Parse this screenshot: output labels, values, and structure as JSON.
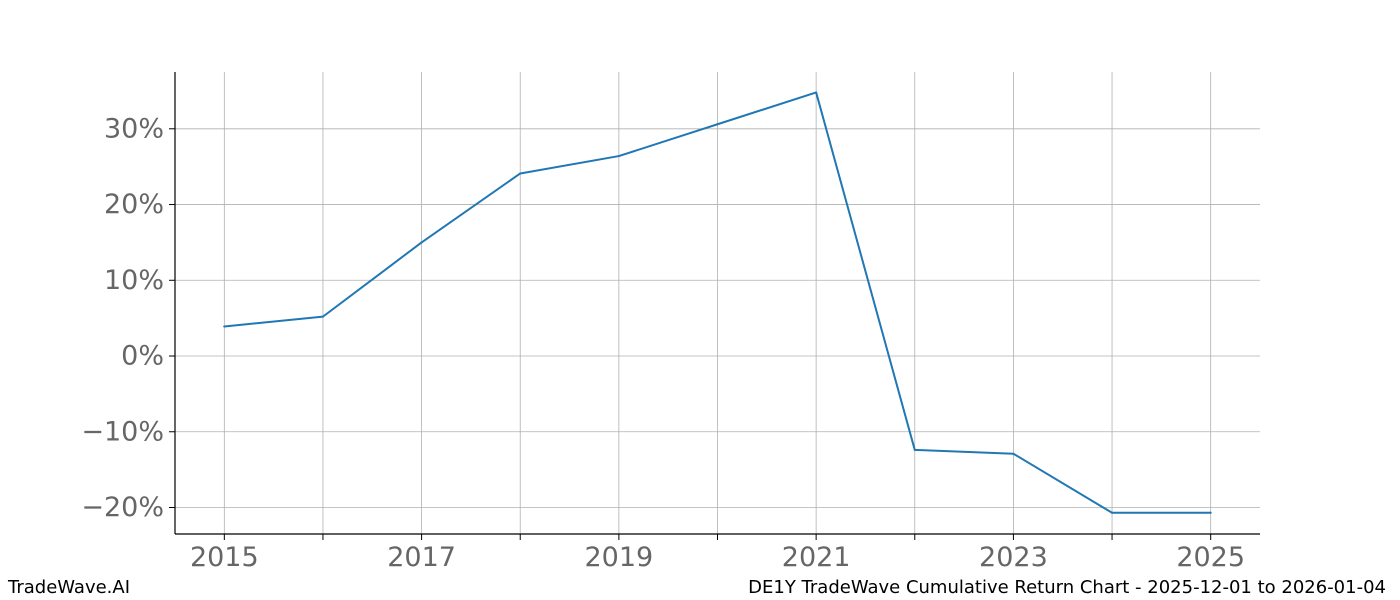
{
  "chart_data": {
    "type": "line",
    "title": "",
    "xlabel": "",
    "ylabel": "",
    "x": [
      2015,
      2016,
      2017,
      2018,
      2019,
      2020,
      2021,
      2022,
      2023,
      2024,
      2025
    ],
    "series": [
      {
        "values": [
          3.9,
          5.2,
          15.0,
          24.1,
          26.4,
          30.6,
          34.8,
          -12.4,
          -12.9,
          -20.7,
          -20.7
        ]
      }
    ],
    "xlim": [
      2014.5,
      2025.5
    ],
    "ylim": [
      -23.5,
      37.5
    ],
    "xticks": [
      2015,
      2016,
      2017,
      2018,
      2019,
      2020,
      2021,
      2022,
      2023,
      2024,
      2025
    ],
    "xtick_labels": [
      {
        "value": 2015,
        "label": "2015"
      },
      {
        "value": 2017,
        "label": "2017"
      },
      {
        "value": 2019,
        "label": "2019"
      },
      {
        "value": 2021,
        "label": "2021"
      },
      {
        "value": 2023,
        "label": "2023"
      },
      {
        "value": 2025,
        "label": "2025"
      }
    ],
    "yticks": [
      {
        "value": 30,
        "label": "30%"
      },
      {
        "value": 20,
        "label": "20%"
      },
      {
        "value": 10,
        "label": "10%"
      },
      {
        "value": 0,
        "label": "0%"
      },
      {
        "value": -10,
        "label": "−10%"
      },
      {
        "value": -20,
        "label": "−20%"
      }
    ],
    "grid": true,
    "line_color": "#1f77b4",
    "grid_color": "#b0b0b0",
    "tick_label_color": "#666666"
  },
  "footer": {
    "left": "TradeWave.AI",
    "right": "DE1Y TradeWave Cumulative Return Chart - 2025-12-01 to 2026-01-04"
  }
}
